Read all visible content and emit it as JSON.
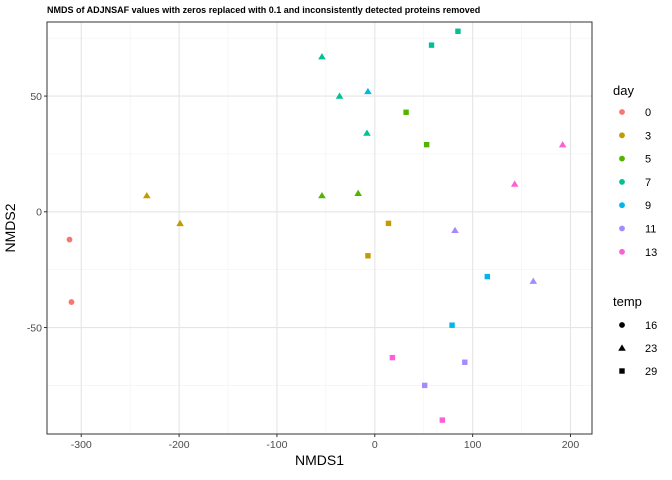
{
  "chart_data": {
    "type": "scatter",
    "title": "NMDS of ADJNSAF values with zeros replaced with 0.1 and inconsistently detected proteins removed",
    "xlabel": "NMDS1",
    "ylabel": "NMDS2",
    "xlim": [
      -335,
      222
    ],
    "ylim": [
      -96,
      82
    ],
    "xticks": [
      -300,
      -200,
      -100,
      0,
      100,
      200
    ],
    "yticks": [
      -50,
      0,
      50
    ],
    "xtick_labels": [
      "-300",
      "-200",
      "-100",
      "0",
      "100",
      "200"
    ],
    "ytick_labels": [
      "-50",
      "0",
      "50"
    ],
    "grid": true,
    "legend_position": "right",
    "color_legend": {
      "title": "day",
      "entries": [
        {
          "label": "0",
          "color": "#F8766D"
        },
        {
          "label": "3",
          "color": "#C49A00"
        },
        {
          "label": "5",
          "color": "#53B400"
        },
        {
          "label": "7",
          "color": "#00C094"
        },
        {
          "label": "9",
          "color": "#00B6EB"
        },
        {
          "label": "11",
          "color": "#A58AFF"
        },
        {
          "label": "13",
          "color": "#FB61D7"
        }
      ]
    },
    "shape_legend": {
      "title": "temp",
      "entries": [
        {
          "label": "16",
          "shape": "circle"
        },
        {
          "label": "23",
          "shape": "triangle"
        },
        {
          "label": "29",
          "shape": "square"
        }
      ]
    },
    "points": [
      {
        "x": -312,
        "y": -12,
        "day": "0",
        "temp": "16"
      },
      {
        "x": -310,
        "y": -39,
        "day": "0",
        "temp": "16"
      },
      {
        "x": -233,
        "y": 7,
        "day": "3",
        "temp": "23"
      },
      {
        "x": -199,
        "y": -5,
        "day": "3",
        "temp": "23"
      },
      {
        "x": 14,
        "y": -5,
        "day": "3",
        "temp": "29"
      },
      {
        "x": -7,
        "y": -19,
        "day": "3",
        "temp": "29"
      },
      {
        "x": -54,
        "y": 7,
        "day": "5",
        "temp": "23"
      },
      {
        "x": -17,
        "y": 8,
        "day": "5",
        "temp": "23"
      },
      {
        "x": 32,
        "y": 43,
        "day": "5",
        "temp": "29"
      },
      {
        "x": 53,
        "y": 29,
        "day": "5",
        "temp": "29"
      },
      {
        "x": -54,
        "y": 67,
        "day": "7",
        "temp": "23"
      },
      {
        "x": -36,
        "y": 50,
        "day": "7",
        "temp": "23"
      },
      {
        "x": -8,
        "y": 34,
        "day": "7",
        "temp": "23"
      },
      {
        "x": 58,
        "y": 72,
        "day": "7",
        "temp": "29"
      },
      {
        "x": 85,
        "y": 78,
        "day": "7",
        "temp": "29"
      },
      {
        "x": -7,
        "y": 52,
        "day": "9",
        "temp": "23"
      },
      {
        "x": 115,
        "y": -28,
        "day": "9",
        "temp": "29"
      },
      {
        "x": 79,
        "y": -49,
        "day": "9",
        "temp": "29"
      },
      {
        "x": 51,
        "y": -75,
        "day": "11",
        "temp": "29"
      },
      {
        "x": 92,
        "y": -65,
        "day": "11",
        "temp": "29"
      },
      {
        "x": 82,
        "y": -8,
        "day": "11",
        "temp": "23"
      },
      {
        "x": 162,
        "y": -30,
        "day": "11",
        "temp": "23"
      },
      {
        "x": 18,
        "y": -63,
        "day": "13",
        "temp": "29"
      },
      {
        "x": 69,
        "y": -90,
        "day": "13",
        "temp": "29"
      },
      {
        "x": 143,
        "y": 12,
        "day": "13",
        "temp": "23"
      },
      {
        "x": 192,
        "y": 29,
        "day": "13",
        "temp": "23"
      }
    ]
  }
}
